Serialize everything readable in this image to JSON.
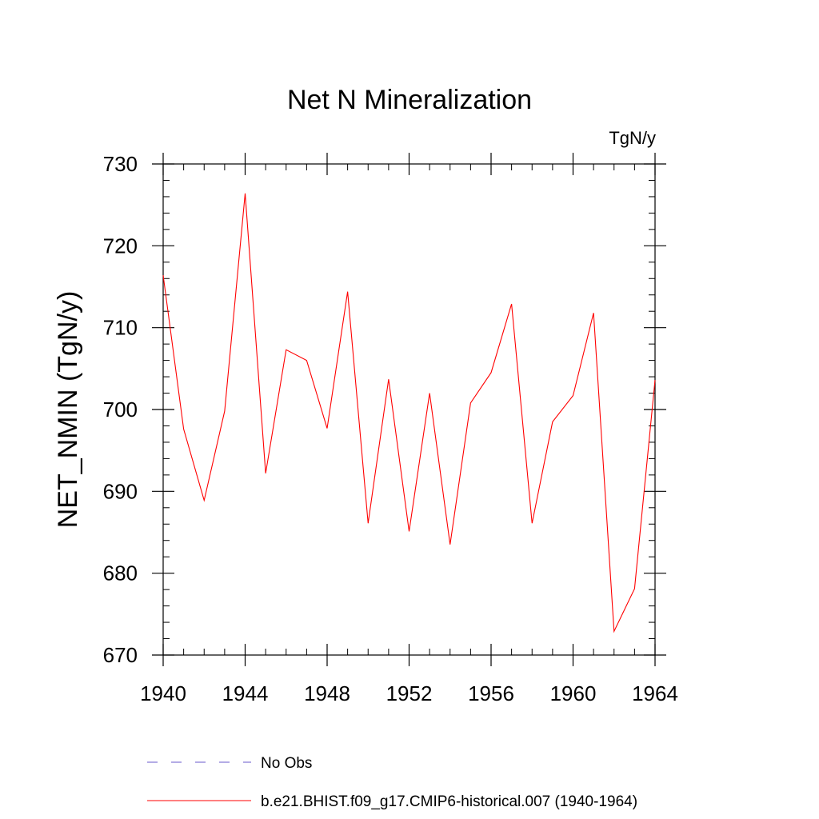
{
  "chart_data": {
    "type": "line",
    "title": "Net N Mineralization",
    "units": "TgN/y",
    "xlabel": "",
    "ylabel": "NET_NMIN  (TgN/y)",
    "xlim": [
      1940,
      1964
    ],
    "ylim": [
      670,
      730
    ],
    "x_ticks": [
      1940,
      1944,
      1948,
      1952,
      1956,
      1960,
      1964
    ],
    "y_ticks": [
      670,
      680,
      690,
      700,
      710,
      720,
      730
    ],
    "x_minor_step": 1,
    "y_minor_step": 2,
    "legend_position": "bottom",
    "series": [
      {
        "name": "No Obs",
        "color": "#6a5acd",
        "style": "dashed",
        "x": [],
        "values": []
      },
      {
        "name": "b.e21.BHIST.f09_g17.CMIP6-historical.007 (1940-1964)",
        "color": "#ff0000",
        "style": "solid",
        "x": [
          1940,
          1941,
          1942,
          1943,
          1944,
          1945,
          1946,
          1947,
          1948,
          1949,
          1950,
          1951,
          1952,
          1953,
          1954,
          1955,
          1956,
          1957,
          1958,
          1959,
          1960,
          1961,
          1962,
          1963,
          1964
        ],
        "values": [
          716.4,
          697.6,
          688.9,
          699.8,
          726.4,
          692.2,
          707.3,
          706.0,
          697.7,
          714.4,
          686.1,
          703.7,
          685.1,
          702.0,
          683.5,
          700.8,
          704.5,
          712.9,
          686.1,
          698.5,
          701.7,
          711.8,
          672.9,
          678.1,
          703.6
        ]
      }
    ]
  }
}
